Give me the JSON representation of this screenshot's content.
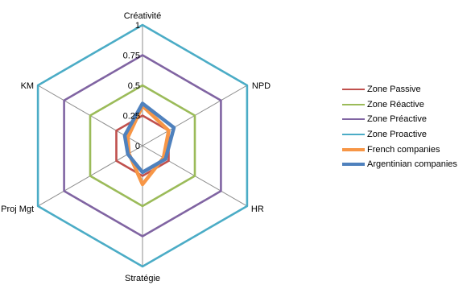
{
  "chart_data": {
    "type": "radar",
    "categories": [
      "Créativité",
      "NPD",
      "HR",
      "Stratégie",
      "Proj Mgt",
      "KM"
    ],
    "ticks": [
      "0",
      "0.25",
      "0.5",
      "0.75",
      "1"
    ],
    "rlim": [
      0,
      1
    ],
    "grid": true,
    "legend": "right",
    "series": [
      {
        "name": "Zone Passive",
        "color": "#C0504D",
        "width": "normal",
        "values": [
          0.25,
          0.25,
          0.25,
          0.25,
          0.25,
          0.25
        ]
      },
      {
        "name": "Zone Réactive",
        "color": "#9BBB59",
        "width": "normal",
        "values": [
          0.5,
          0.5,
          0.5,
          0.5,
          0.5,
          0.5
        ]
      },
      {
        "name": "Zone Préactive",
        "color": "#8064A2",
        "width": "normal",
        "values": [
          0.75,
          0.75,
          0.75,
          0.75,
          0.75,
          0.75
        ]
      },
      {
        "name": "Zone Proactive",
        "color": "#4BACC6",
        "width": "normal",
        "values": [
          1,
          1,
          1,
          1,
          1,
          1
        ]
      },
      {
        "name": "French companies",
        "color": "#F79646",
        "width": "thick",
        "values": [
          0.33,
          0.25,
          0.2,
          0.32,
          0.13,
          0.14
        ]
      },
      {
        "name": "Argentinian companies",
        "color": "#4F81BD",
        "width": "thick",
        "values": [
          0.35,
          0.3,
          0.22,
          0.22,
          0.14,
          0.17
        ]
      }
    ]
  }
}
